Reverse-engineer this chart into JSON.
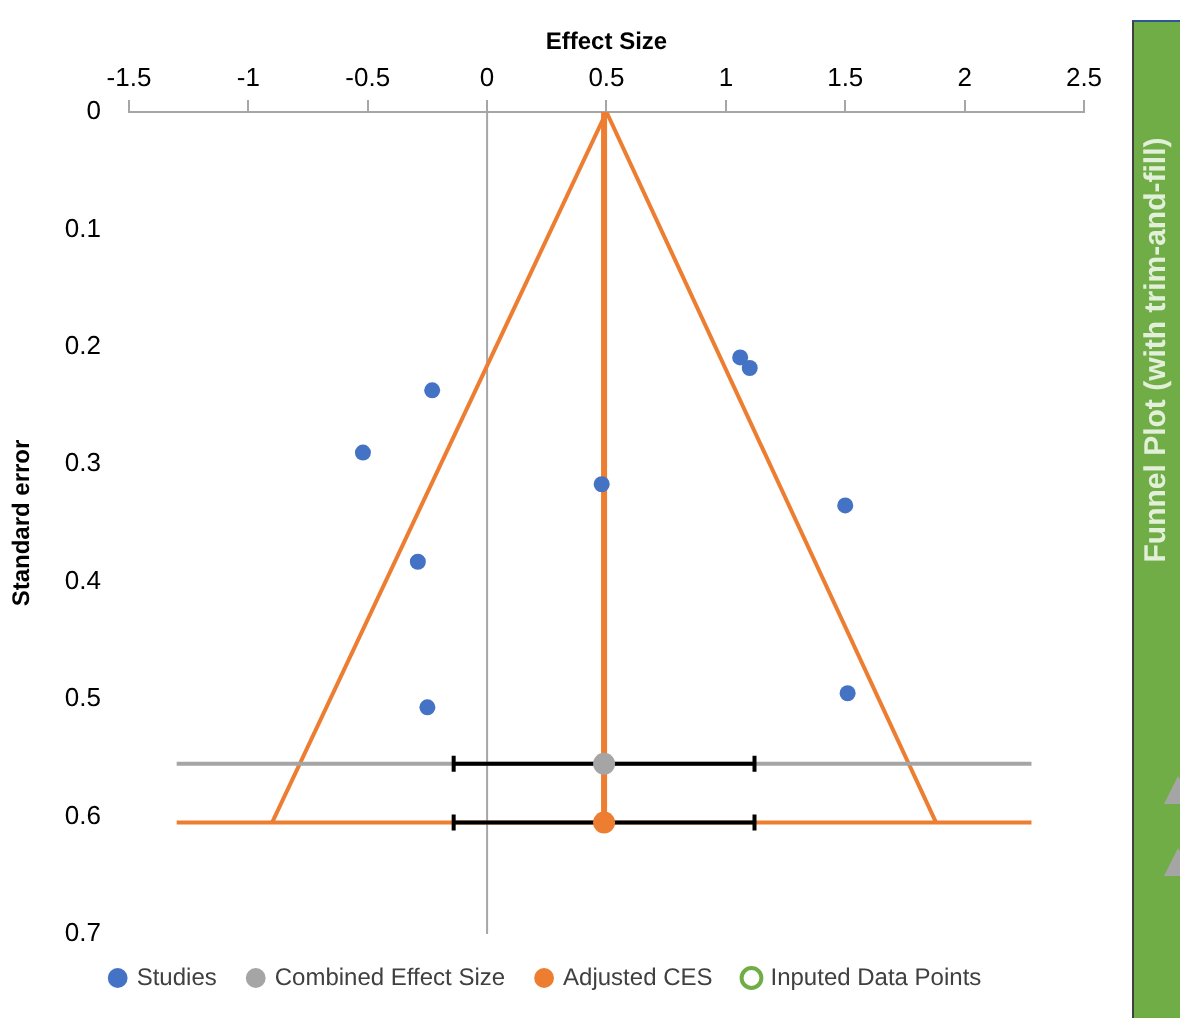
{
  "chart_data": {
    "type": "scatter",
    "xlabel": "Effect Size",
    "ylabel": "Standard error",
    "xlim": [
      -1.5,
      2.5
    ],
    "xticks": [
      -1.5,
      -1,
      -0.5,
      0,
      0.5,
      1,
      1.5,
      2,
      2.5
    ],
    "ylim": [
      0.7,
      0
    ],
    "yticks": [
      0,
      0.1,
      0.2,
      0.3,
      0.4,
      0.5,
      0.6,
      0.7
    ],
    "legend": "bottom",
    "marker": "circle",
    "annotations": [
      "Funnel Plot (with trim-and-fill)"
    ],
    "series": [
      {
        "type": "line",
        "color": "#ed7d31",
        "x": [
          -0.9,
          0.5,
          1.88
        ],
        "values": [
          0.605,
          0,
          0.605
        ],
        "marker": "none"
      },
      {
        "type": "line",
        "color": "#ed7d31",
        "x": [
          0.49,
          0.49
        ],
        "values": [
          0,
          0.605
        ],
        "marker": "none"
      },
      {
        "name": "Studies",
        "color": "#4472c4",
        "x": [
          1.06,
          1.1,
          -0.23,
          -0.52,
          0.48,
          1.5,
          -0.29,
          -0.25,
          1.51
        ],
        "values": [
          0.209,
          0.218,
          0.237,
          0.29,
          0.317,
          0.335,
          0.383,
          0.507,
          0.495
        ]
      },
      {
        "type": "line",
        "color": "#a5a5a5",
        "x": [
          -1.3,
          2.28
        ],
        "values": [
          0.555,
          0.555
        ],
        "marker": "none"
      },
      {
        "type": "line",
        "color": "#ed7d31",
        "x": [
          -1.3,
          2.28
        ],
        "values": [
          0.605,
          0.605
        ],
        "marker": "none"
      },
      {
        "name": "Combined Effect Size",
        "color": "#a5a5a5",
        "x": [
          0.49
        ],
        "values": [
          0.555
        ],
        "xerrors": [
          [
            -0.14,
            1.12
          ]
        ]
      },
      {
        "name": "Adjusted CES",
        "color": "#ed7d31",
        "x": [
          0.49
        ],
        "values": [
          0.605
        ],
        "xerrors": [
          [
            -0.14,
            1.12
          ]
        ]
      },
      {
        "name": "Inputed Data Points",
        "color": "#70ad47"
      }
    ]
  }
}
